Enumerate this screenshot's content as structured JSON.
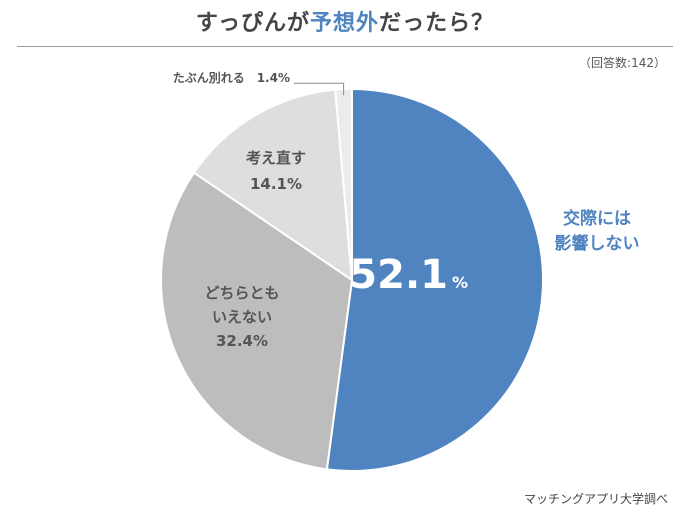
{
  "title": {
    "before": "すっぴんが",
    "accent": "予想外",
    "after": "だったら？"
  },
  "respondents_note": "（回答数:142）",
  "source": "マッチングアプリ大学調べ",
  "colors": {
    "accent": "#4f84c0",
    "slice_blue": "#4f84c0",
    "slice_mid_gray": "#bdbdbd",
    "slice_light_gray": "#dedede",
    "slice_pale_gray": "#ebebeb",
    "outline": "#ffffff"
  },
  "chart_data": {
    "type": "pie",
    "title": "すっぴんが予想外だったら？",
    "unit": "%",
    "start": "12 o'clock, clockwise",
    "slices": [
      {
        "name": "交際には影響しない",
        "label_lines": [
          "交際には",
          "影響しない"
        ],
        "value": 52.1,
        "value_text": "52.1",
        "unit_text": "%",
        "color": "#4f84c0",
        "label_placement": "outside-right"
      },
      {
        "name": "どちらともいえない",
        "label_lines": [
          "どちらとも",
          "いえない",
          "32.4%"
        ],
        "value": 32.4,
        "color": "#bdbdbd",
        "label_placement": "inside"
      },
      {
        "name": "考え直す",
        "label_lines": [
          "考え直す",
          "14.1%"
        ],
        "value": 14.1,
        "color": "#dedede",
        "label_placement": "inside"
      },
      {
        "name": "たぶん別れる",
        "label_lines": [
          "たぶん別れる　1.4%"
        ],
        "value": 1.4,
        "color": "#ebebeb",
        "label_placement": "outside-callout"
      }
    ]
  }
}
